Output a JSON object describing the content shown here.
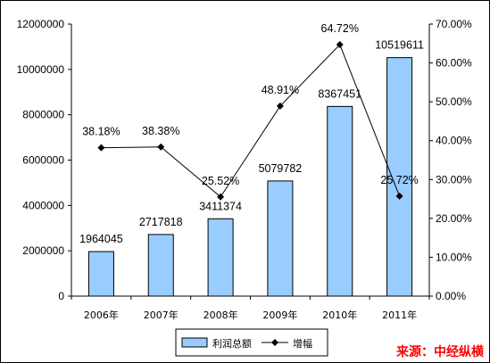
{
  "chart_data": {
    "type": "bar+line",
    "categories": [
      "2006年",
      "2007年",
      "2008年",
      "2009年",
      "2010年",
      "2011年"
    ],
    "series": [
      {
        "name": "利润总额",
        "type": "bar",
        "axis": "left",
        "values": [
          1964045,
          2717818,
          3411374,
          5079782,
          8367451,
          10519611
        ],
        "labels": [
          "1964045",
          "2717818",
          "3411374",
          "5079782",
          "8367451",
          "10519611"
        ],
        "color": "#99ccff"
      },
      {
        "name": "增幅",
        "type": "line",
        "axis": "right",
        "values": [
          38.18,
          38.38,
          25.52,
          48.91,
          64.72,
          25.72
        ],
        "labels": [
          "38.18%",
          "38.38%",
          "25.52%",
          "48.91%",
          "64.72%",
          "25.72%"
        ],
        "color": "#000000",
        "marker": "diamond"
      }
    ],
    "y_left": {
      "ylim": [
        0,
        12000000
      ],
      "ticks": [
        "0",
        "2000000",
        "4000000",
        "6000000",
        "8000000",
        "10000000",
        "12000000"
      ]
    },
    "y_right": {
      "ylim": [
        0,
        70
      ],
      "ticks": [
        "0.00%",
        "10.00%",
        "20.00%",
        "30.00%",
        "40.00%",
        "50.00%",
        "60.00%",
        "70.00%"
      ]
    },
    "grid": false,
    "legend": "bottom",
    "source": "来源：中经纵横"
  }
}
